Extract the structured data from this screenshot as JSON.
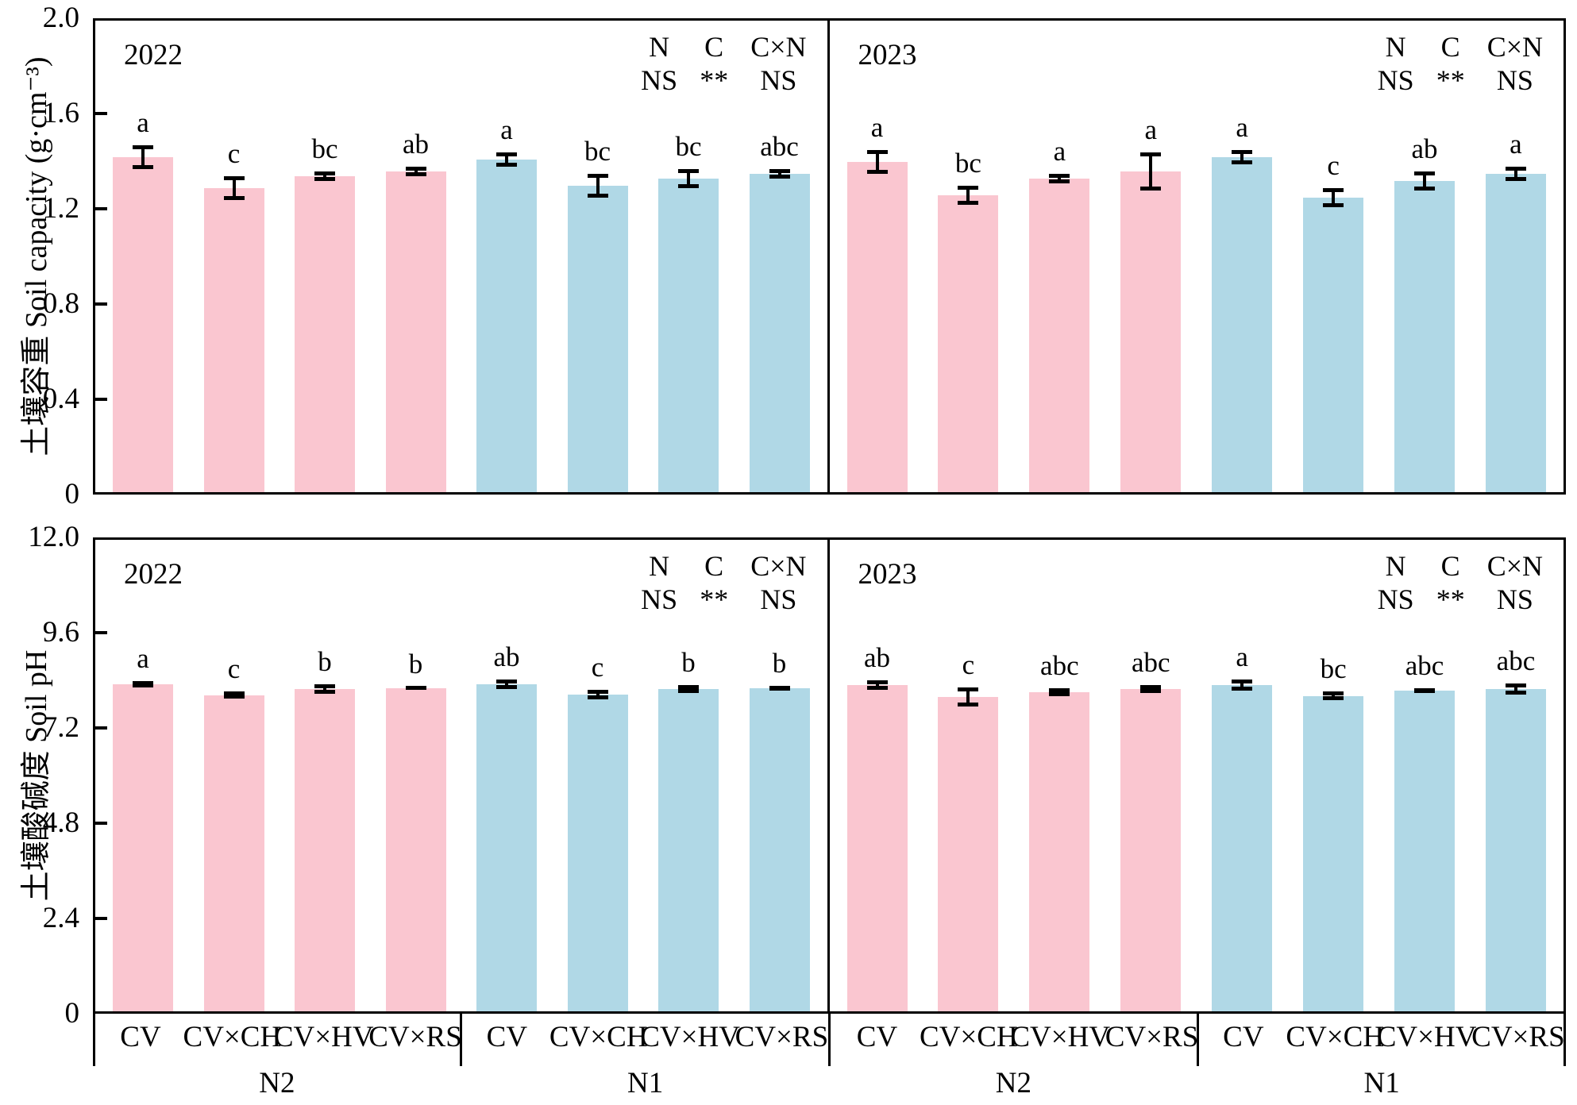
{
  "colors": {
    "n2_bar": "#FAC6D0",
    "n1_bar": "#B0D8E6",
    "axis": "#000000",
    "error_bar": "#000000"
  },
  "chart_data": {
    "type": "bar",
    "x_tick_labels": [
      "CV",
      "CV×CH",
      "CV×HV",
      "CV×RS"
    ],
    "group_labels": [
      "N2",
      "N1"
    ],
    "rows": [
      {
        "ylabel": "土壤容重 Soil capacity (g·cm⁻³)",
        "ymax": 2.0,
        "yticks": [
          {
            "value": 2.0,
            "label": "2.0"
          },
          {
            "value": 1.6,
            "label": "1.6"
          },
          {
            "value": 1.2,
            "label": "1.2"
          },
          {
            "value": 0.8,
            "label": "0.8"
          },
          {
            "value": 0.4,
            "label": "0.4"
          },
          {
            "value": 0,
            "label": "0"
          }
        ],
        "panels": [
          {
            "year": "2022",
            "stats": {
              "factors": [
                "N",
                "C",
                "C×N"
              ],
              "significance": [
                "NS",
                "**",
                "NS"
              ]
            },
            "groups": [
              {
                "name": "N2",
                "color": "n2_bar",
                "bars": [
                  {
                    "treatment": "CV",
                    "value": 1.42,
                    "error": 0.05,
                    "letter": "a"
                  },
                  {
                    "treatment": "CV×CH",
                    "value": 1.29,
                    "error": 0.05,
                    "letter": "c"
                  },
                  {
                    "treatment": "CV×HV",
                    "value": 1.34,
                    "error": 0.02,
                    "letter": "bc"
                  },
                  {
                    "treatment": "CV×RS",
                    "value": 1.36,
                    "error": 0.02,
                    "letter": "ab"
                  }
                ]
              },
              {
                "name": "N1",
                "color": "n1_bar",
                "bars": [
                  {
                    "treatment": "CV",
                    "value": 1.41,
                    "error": 0.03,
                    "letter": "a"
                  },
                  {
                    "treatment": "CV×CH",
                    "value": 1.3,
                    "error": 0.05,
                    "letter": "bc"
                  },
                  {
                    "treatment": "CV×HV",
                    "value": 1.33,
                    "error": 0.04,
                    "letter": "bc"
                  },
                  {
                    "treatment": "CV×RS",
                    "value": 1.35,
                    "error": 0.02,
                    "letter": "abc"
                  }
                ]
              }
            ]
          },
          {
            "year": "2023",
            "stats": {
              "factors": [
                "N",
                "C",
                "C×N"
              ],
              "significance": [
                "NS",
                "**",
                "NS"
              ]
            },
            "groups": [
              {
                "name": "N2",
                "color": "n2_bar",
                "bars": [
                  {
                    "treatment": "CV",
                    "value": 1.4,
                    "error": 0.05,
                    "letter": "a"
                  },
                  {
                    "treatment": "CV×CH",
                    "value": 1.26,
                    "error": 0.04,
                    "letter": "bc"
                  },
                  {
                    "treatment": "CV×HV",
                    "value": 1.33,
                    "error": 0.02,
                    "letter": "a"
                  },
                  {
                    "treatment": "CV×RS",
                    "value": 1.36,
                    "error": 0.08,
                    "letter": "a"
                  }
                ]
              },
              {
                "name": "N1",
                "color": "n1_bar",
                "bars": [
                  {
                    "treatment": "CV",
                    "value": 1.42,
                    "error": 0.03,
                    "letter": "a"
                  },
                  {
                    "treatment": "CV×CH",
                    "value": 1.25,
                    "error": 0.04,
                    "letter": "c"
                  },
                  {
                    "treatment": "CV×HV",
                    "value": 1.32,
                    "error": 0.04,
                    "letter": "ab"
                  },
                  {
                    "treatment": "CV×RS",
                    "value": 1.35,
                    "error": 0.03,
                    "letter": "a"
                  }
                ]
              }
            ]
          }
        ]
      },
      {
        "ylabel": "土壤酸碱度 Soil pH",
        "ymax": 12.0,
        "yticks": [
          {
            "value": 12.0,
            "label": "12.0"
          },
          {
            "value": 9.6,
            "label": "9.6"
          },
          {
            "value": 7.2,
            "label": "7.2"
          },
          {
            "value": 4.8,
            "label": "4.8"
          },
          {
            "value": 2.4,
            "label": "2.4"
          },
          {
            "value": 0,
            "label": "0"
          }
        ],
        "panels": [
          {
            "year": "2022",
            "stats": {
              "factors": [
                "N",
                "C",
                "C×N"
              ],
              "significance": [
                "NS",
                "**",
                "NS"
              ]
            },
            "groups": [
              {
                "name": "N2",
                "color": "n2_bar",
                "bars": [
                  {
                    "treatment": "CV",
                    "value": 8.32,
                    "error": 0.08,
                    "letter": "a"
                  },
                  {
                    "treatment": "CV×CH",
                    "value": 8.05,
                    "error": 0.1,
                    "letter": "c"
                  },
                  {
                    "treatment": "CV×HV",
                    "value": 8.2,
                    "error": 0.12,
                    "letter": "b"
                  },
                  {
                    "treatment": "CV×RS",
                    "value": 8.22,
                    "error": 0.04,
                    "letter": "b"
                  }
                ]
              },
              {
                "name": "N1",
                "color": "n1_bar",
                "bars": [
                  {
                    "treatment": "CV",
                    "value": 8.33,
                    "error": 0.12,
                    "letter": "ab"
                  },
                  {
                    "treatment": "CV×CH",
                    "value": 8.06,
                    "error": 0.12,
                    "letter": "c"
                  },
                  {
                    "treatment": "CV×HV",
                    "value": 8.2,
                    "error": 0.1,
                    "letter": "b"
                  },
                  {
                    "treatment": "CV×RS",
                    "value": 8.22,
                    "error": 0.06,
                    "letter": "b"
                  }
                ]
              }
            ]
          },
          {
            "year": "2023",
            "stats": {
              "factors": [
                "N",
                "C",
                "C×N"
              ],
              "significance": [
                "NS",
                "**",
                "NS"
              ]
            },
            "groups": [
              {
                "name": "N2",
                "color": "n2_bar",
                "bars": [
                  {
                    "treatment": "CV",
                    "value": 8.3,
                    "error": 0.12,
                    "letter": "ab"
                  },
                  {
                    "treatment": "CV×CH",
                    "value": 8.0,
                    "error": 0.24,
                    "letter": "c"
                  },
                  {
                    "treatment": "CV×HV",
                    "value": 8.13,
                    "error": 0.1,
                    "letter": "abc"
                  },
                  {
                    "treatment": "CV×RS",
                    "value": 8.2,
                    "error": 0.1,
                    "letter": "abc"
                  }
                ]
              },
              {
                "name": "N1",
                "color": "n1_bar",
                "bars": [
                  {
                    "treatment": "CV",
                    "value": 8.3,
                    "error": 0.14,
                    "letter": "a"
                  },
                  {
                    "treatment": "CV×CH",
                    "value": 8.03,
                    "error": 0.12,
                    "letter": "bc"
                  },
                  {
                    "treatment": "CV×HV",
                    "value": 8.17,
                    "error": 0.06,
                    "letter": "abc"
                  },
                  {
                    "treatment": "CV×RS",
                    "value": 8.2,
                    "error": 0.14,
                    "letter": "abc"
                  }
                ]
              }
            ]
          }
        ]
      }
    ]
  }
}
